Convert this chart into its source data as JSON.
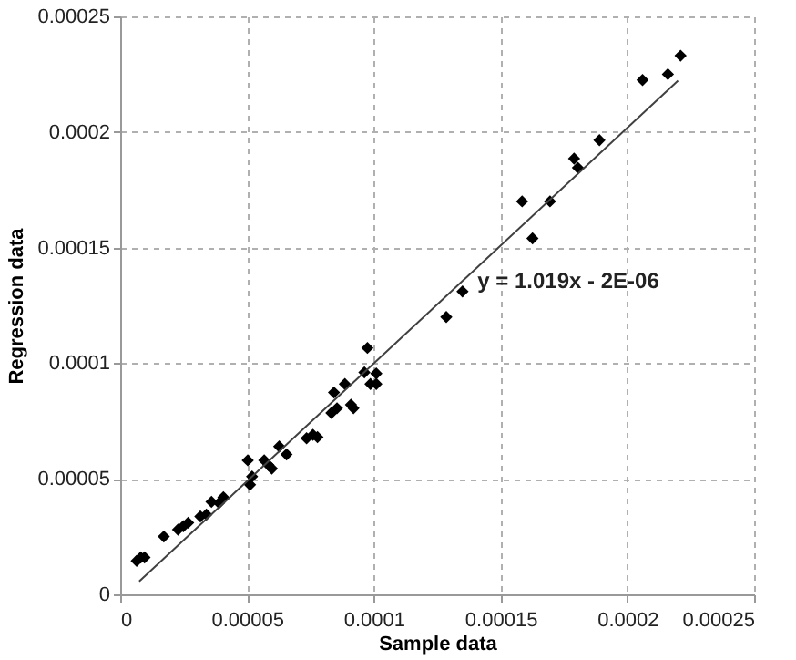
{
  "chart_data": {
    "type": "scatter",
    "xlabel": "Sample data",
    "ylabel": "Regression data",
    "xlim": [
      0,
      0.00025
    ],
    "ylim": [
      0,
      0.00025
    ],
    "xticks": [
      0,
      {
        "value": 5e-05,
        "label": "0.00005"
      },
      0.0001,
      0.00015,
      0.0002,
      0.00025
    ],
    "yticks": [
      0,
      {
        "value": 5e-05,
        "label": "0.00005"
      },
      0.0001,
      0.00015,
      0.0002,
      0.00025
    ],
    "grid": true,
    "marker": "diamond",
    "series": [
      {
        "color": "#000000",
        "x": [
          6.5e-06,
          8.1e-06,
          9.6e-06,
          1.72e-05,
          2.28e-05,
          2.49e-05,
          2.68e-05,
          3.16e-05,
          3.4e-05,
          3.6e-05,
          3.9e-05,
          4.07e-05,
          5.03e-05,
          5.12e-05,
          5.2e-05,
          5.68e-05,
          5.84e-05,
          5.98e-05,
          6.27e-05,
          6.56e-05,
          7.35e-05,
          7.6e-05,
          7.78e-05,
          8.33e-05,
          8.55e-05,
          8.43e-05,
          8.86e-05,
          9.1e-05,
          9.2e-05,
          9.63e-05,
          9.75e-05,
          9.87e-05,
          0.000101,
          0.000101,
          0.0001286,
          0.000135,
          0.0001585,
          0.0001626,
          0.0001695,
          0.000179,
          0.0001805,
          0.000189,
          0.000206,
          0.000216,
          0.000221
        ],
        "values": [
          1.45e-05,
          1.6e-05,
          1.6e-05,
          2.5e-05,
          2.8e-05,
          2.95e-05,
          3.1e-05,
          3.37e-05,
          3.45e-05,
          4e-05,
          3.95e-05,
          4.2e-05,
          5.8e-05,
          4.74e-05,
          5.1e-05,
          5.8e-05,
          5.6e-05,
          5.44e-05,
          6.4e-05,
          6.05e-05,
          6.75e-05,
          6.9e-05,
          6.8e-05,
          7.85e-05,
          8.05e-05,
          8.73e-05,
          9.1e-05,
          8.2e-05,
          8.05e-05,
          9.6e-05,
          0.0001066,
          9.1e-05,
          9.55e-05,
          9.1e-05,
          0.00012,
          0.000131,
          0.00017,
          0.000154,
          0.00017,
          0.0001885,
          0.0001845,
          0.0001965,
          0.0002225,
          0.000225,
          0.000233
        ]
      },
      {
        "type": "line",
        "color": "#404040",
        "line_style": "solid",
        "marker": "none",
        "x": [
          7.5e-06,
          0.00022
        ],
        "values": [
          5.6e-06,
          0.0002222
        ]
      }
    ],
    "annotations": [
      "y = 1.019x - 2E-06"
    ]
  }
}
